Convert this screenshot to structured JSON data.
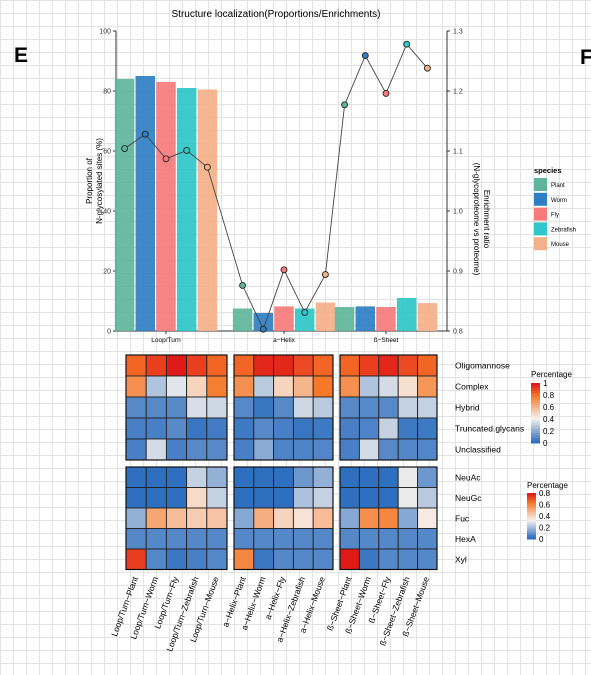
{
  "panels": {
    "left_label": "E",
    "right_label": "F"
  },
  "chart_data": [
    {
      "type": "bar",
      "title": "Structure localization(Proportions/Enrichments)",
      "categories": [
        "Loop/Turn",
        "a−Helix",
        "ß−Sheet"
      ],
      "ylabel": "Proportion of\nN-glycosylated sites (%)",
      "ylim": [
        0,
        100
      ],
      "yticks": [
        0,
        20,
        40,
        60,
        80,
        100
      ],
      "y2label": "Enrichment ratio\n(N-glycoproteome vs proteome)",
      "y2lim": [
        0.8,
        1.3
      ],
      "y2ticks": [
        0.8,
        0.9,
        1.0,
        1.1,
        1.2,
        1.3
      ],
      "y2ticklabels": [
        "0.8",
        "0.9",
        "1.0",
        "1.1",
        "1.2",
        "1.3"
      ],
      "legend_title": "species",
      "legend_position": "right",
      "series": [
        {
          "name": "Plant",
          "color": "#5eb69a",
          "values": [
            84,
            7.5,
            8
          ],
          "enrichment": [
            1.104,
            0.876,
            1.177
          ]
        },
        {
          "name": "Worm",
          "color": "#2f7fc4",
          "values": [
            85,
            6,
            8.2
          ],
          "enrichment": [
            1.128,
            0.803,
            1.259
          ]
        },
        {
          "name": "Fly",
          "color": "#f77b7b",
          "values": [
            83,
            8.2,
            8
          ],
          "enrichment": [
            1.087,
            0.902,
            1.196
          ]
        },
        {
          "name": "Zebrafish",
          "color": "#2fc7c7",
          "values": [
            81,
            7.5,
            11
          ],
          "enrichment": [
            1.101,
            0.831,
            1.278
          ]
        },
        {
          "name": "Mouse",
          "color": "#f4b088",
          "values": [
            80.5,
            9.5,
            9.3
          ],
          "enrichment": [
            1.073,
            0.894,
            1.238
          ]
        }
      ]
    },
    {
      "type": "heatmap",
      "legend_title": "Percentage",
      "legend_range": [
        0,
        1
      ],
      "legend_ticks": [
        "1",
        "0.8",
        "0.6",
        "0.4",
        "0.2",
        "0"
      ],
      "rows": [
        "Oligomannose",
        "Complex",
        "Hybrid",
        "Truncated.glycans",
        "Unclassified"
      ],
      "values": [
        [
          0.84,
          0.92,
          1.0,
          0.92,
          0.84,
          0.84,
          0.97,
          0.97,
          0.9,
          0.84,
          0.84,
          0.92,
          0.97,
          0.9,
          0.84
        ],
        [
          0.72,
          0.26,
          0.36,
          0.5,
          0.78,
          0.72,
          0.28,
          0.5,
          0.6,
          0.8,
          0.72,
          0.26,
          0.33,
          0.46,
          0.7
        ],
        [
          0.08,
          0.08,
          0.08,
          0.34,
          0.32,
          0.08,
          0.02,
          0.08,
          0.32,
          0.28,
          0.08,
          0.08,
          0.08,
          0.3,
          0.3
        ],
        [
          0.05,
          0.05,
          0.08,
          0.02,
          0.04,
          0.03,
          0.08,
          0.05,
          0.02,
          0.03,
          0.05,
          0.06,
          0.3,
          0.03,
          0.03
        ],
        [
          0.05,
          0.33,
          0.05,
          0.08,
          0.08,
          0.05,
          0.18,
          0.06,
          0.06,
          0.07,
          0.05,
          0.33,
          0.08,
          0.07,
          0.07
        ]
      ]
    },
    {
      "type": "heatmap",
      "legend_title": "Percentage",
      "legend_range": [
        0,
        0.8
      ],
      "legend_ticks": [
        "0.8",
        "0.6",
        "0.4",
        "0.2",
        "0"
      ],
      "rows": [
        "NeuAc",
        "NeuGc",
        "Fuc",
        "HexA",
        "Xyl"
      ],
      "values": [
        [
          0.0,
          0.0,
          0.0,
          0.24,
          0.16,
          0.0,
          0.0,
          0.0,
          0.1,
          0.16,
          0.0,
          0.0,
          0.0,
          0.3,
          0.1
        ],
        [
          0.0,
          0.0,
          0.0,
          0.38,
          0.24,
          0.0,
          0.0,
          0.0,
          0.2,
          0.24,
          0.0,
          0.0,
          0.0,
          0.3,
          0.22
        ],
        [
          0.16,
          0.52,
          0.46,
          0.42,
          0.44,
          0.14,
          0.5,
          0.4,
          0.36,
          0.46,
          0.14,
          0.58,
          0.6,
          0.14,
          0.34
        ],
        [
          0.06,
          0.06,
          0.06,
          0.06,
          0.06,
          0.06,
          0.06,
          0.06,
          0.06,
          0.06,
          0.06,
          0.06,
          0.06,
          0.06,
          0.06
        ],
        [
          0.74,
          0.06,
          0.02,
          0.04,
          0.06,
          0.6,
          0.02,
          0.06,
          0.06,
          0.06,
          0.8,
          0.02,
          0.06,
          0.06,
          0.06
        ]
      ]
    }
  ],
  "column_labels": [
    "Loop/Turn−Plant",
    "Loop/Turn−Worm",
    "Loop/Turn−Fly",
    "Loop/Turn−Zebrafish",
    "Loop/Turn−Mouse",
    "a−Helix−Plant",
    "a−Helix−Worm",
    "a−Helix−Fly",
    "a−Helix−Zebrafish",
    "a−Helix−Mouse",
    "ß−Sheet−Plant",
    "ß−Sheet−Worm",
    "ß−Sheet−Fly",
    "ß−Sheet−Zebrafish",
    "ß−Sheet−Mouse"
  ],
  "colors": {
    "scale_low": "#2f6fc0",
    "scale_mid": "#f6f2ee",
    "scale_high": "#e01919"
  }
}
